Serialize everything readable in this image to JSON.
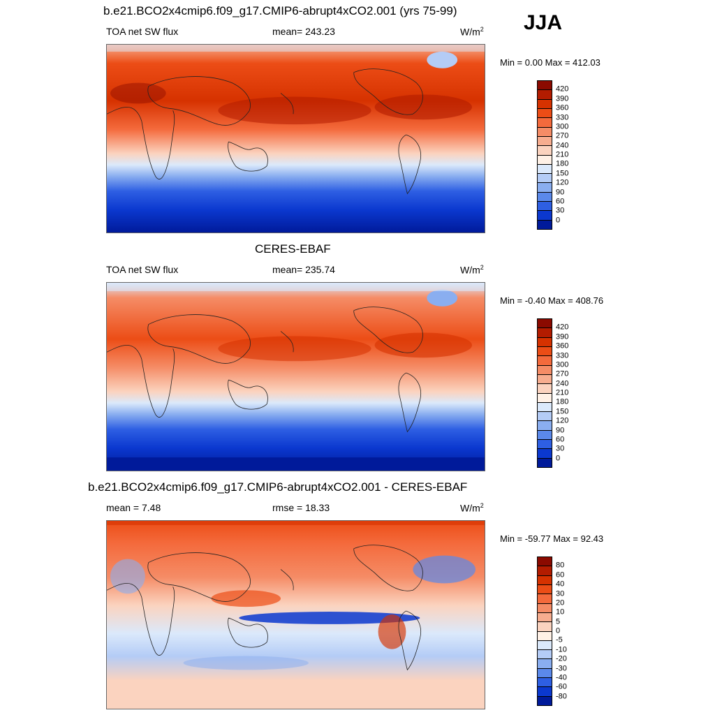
{
  "season": "JJA",
  "units": "W/m",
  "units_sup": "2",
  "panels": [
    {
      "id": "model",
      "title": "b.e21.BCO2x4cmip6.f09_g17.CMIP6-abrupt4xCO2.001 (yrs 75-99)",
      "left_label": "TOA net SW flux",
      "mid_label": "mean= 243.23",
      "minmax": "Min =   0.00 Max = 412.03"
    },
    {
      "id": "obs",
      "title": "CERES-EBAF",
      "left_label": "TOA net SW flux",
      "mid_label": "mean= 235.74",
      "minmax": "Min =  -0.40 Max = 408.76"
    },
    {
      "id": "diff",
      "title": "b.e21.BCO2x4cmip6.f09_g17.CMIP6-abrupt4xCO2.001 - CERES-EBAF",
      "left_label": "mean =   7.48",
      "mid_label": "rmse =  18.33",
      "minmax": "Min = -59.77 Max =  92.43"
    }
  ],
  "colorbars": {
    "flux": {
      "labels": [
        "420",
        "390",
        "360",
        "330",
        "300",
        "270",
        "240",
        "210",
        "180",
        "150",
        "120",
        "90",
        "60",
        "30",
        "0"
      ],
      "colors": [
        "#8b0a00",
        "#b31c00",
        "#d63200",
        "#ec4d16",
        "#f46a3c",
        "#f58c66",
        "#f7ad8f",
        "#fbd3bf",
        "#fff1e6",
        "#dbe9fb",
        "#b4ccf6",
        "#8aaef0",
        "#5b89ea",
        "#2e5fe3",
        "#0b38cf",
        "#001a9a"
      ]
    },
    "diff": {
      "labels": [
        "80",
        "60",
        "40",
        "30",
        "20",
        "10",
        "5",
        "0",
        "-5",
        "-10",
        "-20",
        "-30",
        "-40",
        "-60",
        "-80"
      ],
      "colors": [
        "#8b0a00",
        "#b31c00",
        "#d63200",
        "#ec4d16",
        "#f46a3c",
        "#f58c66",
        "#f7ad8f",
        "#fbd3bf",
        "#fff1e6",
        "#dbe9fb",
        "#b4ccf6",
        "#8aaef0",
        "#5b89ea",
        "#2e5fe3",
        "#0b38cf",
        "#001a9a"
      ]
    }
  }
}
